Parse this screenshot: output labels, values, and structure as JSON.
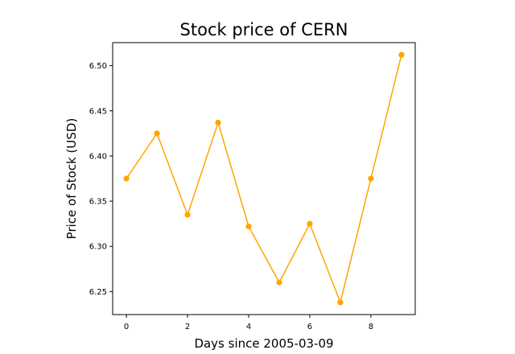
{
  "chart_data": {
    "type": "line",
    "title": "Stock price of CERN",
    "xlabel": "Days since 2005-03-09",
    "ylabel": "Price of Stock (USD)",
    "x": [
      0,
      1,
      2,
      3,
      4,
      5,
      6,
      7,
      8,
      9
    ],
    "series": [
      {
        "values": [
          6.375,
          6.425,
          6.335,
          6.437,
          6.322,
          6.26,
          6.325,
          6.238,
          6.375,
          6.512
        ],
        "color": "#FFA500",
        "marker": "circle"
      }
    ],
    "xlim": [
      -0.45,
      9.45
    ],
    "ylim": [
      6.2245,
      6.5255
    ],
    "xticks": [
      0,
      2,
      4,
      6,
      8
    ],
    "yticks": [
      6.25,
      6.3,
      6.35,
      6.4,
      6.45,
      6.5
    ],
    "xtick_labels": [
      "0",
      "2",
      "4",
      "6",
      "8"
    ],
    "ytick_labels": [
      "6.25",
      "6.30",
      "6.35",
      "6.40",
      "6.45",
      "6.50"
    ],
    "grid": false,
    "legend": false
  }
}
